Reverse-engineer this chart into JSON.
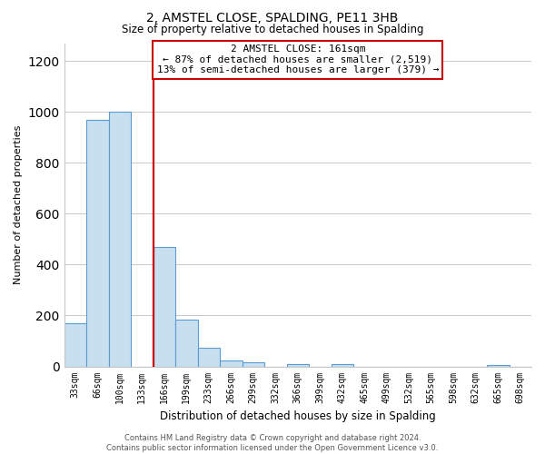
{
  "title": "2, AMSTEL CLOSE, SPALDING, PE11 3HB",
  "subtitle": "Size of property relative to detached houses in Spalding",
  "xlabel": "Distribution of detached houses by size in Spalding",
  "ylabel": "Number of detached properties",
  "bar_labels": [
    "33sqm",
    "66sqm",
    "100sqm",
    "133sqm",
    "166sqm",
    "199sqm",
    "233sqm",
    "266sqm",
    "299sqm",
    "332sqm",
    "366sqm",
    "399sqm",
    "432sqm",
    "465sqm",
    "499sqm",
    "532sqm",
    "565sqm",
    "598sqm",
    "632sqm",
    "665sqm",
    "698sqm"
  ],
  "bar_values": [
    170,
    970,
    1000,
    0,
    470,
    185,
    75,
    25,
    15,
    0,
    10,
    0,
    10,
    0,
    0,
    0,
    0,
    0,
    0,
    5,
    0
  ],
  "bar_color": "#c8dff0",
  "bar_edge_color": "#5b9bd5",
  "vline_x": 3.5,
  "vline_color": "#cc0000",
  "annotation_title": "2 AMSTEL CLOSE: 161sqm",
  "annotation_line1": "← 87% of detached houses are smaller (2,519)",
  "annotation_line2": "13% of semi-detached houses are larger (379) →",
  "annotation_box_color": "#ffffff",
  "annotation_box_edge": "#cc0000",
  "ylim": [
    0,
    1270
  ],
  "yticks": [
    0,
    200,
    400,
    600,
    800,
    1000,
    1200
  ],
  "footer_line1": "Contains HM Land Registry data © Crown copyright and database right 2024.",
  "footer_line2": "Contains public sector information licensed under the Open Government Licence v3.0.",
  "background_color": "#ffffff",
  "grid_color": "#c8c8c8"
}
